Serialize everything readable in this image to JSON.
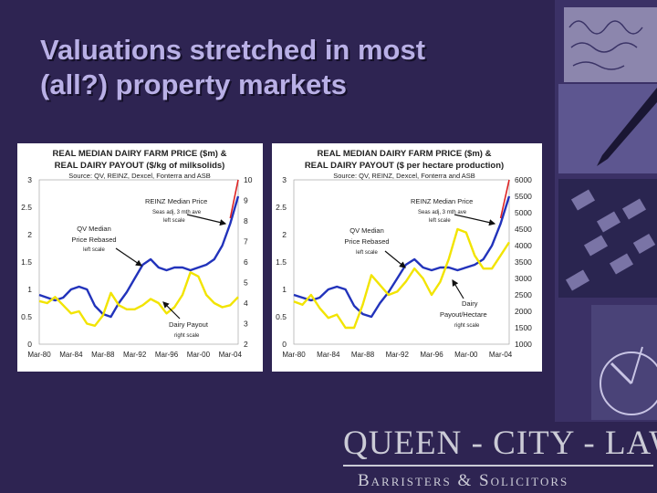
{
  "slide": {
    "title_line1": "Valuations stretched in most",
    "title_line2": "(all?) property markets",
    "background": "#2e2452",
    "title_color": "#b9b0e6"
  },
  "logo": {
    "main": "QUEEN - CITY - LAW",
    "sub": "Barristers & Solicitors"
  },
  "chart_data": [
    {
      "type": "line",
      "title_line1": "REAL MEDIAN DAIRY FARM PRICE ($m) &",
      "title_line2": "REAL DAIRY PAYOUT ($/kg of milksolids)",
      "source": "Source: QV, REINZ, Dexcel, Fonterra and ASB",
      "x": [
        1980,
        1981,
        1982,
        1983,
        1984,
        1985,
        1986,
        1987,
        1988,
        1989,
        1990,
        1991,
        1992,
        1993,
        1994,
        1995,
        1996,
        1997,
        1998,
        1999,
        2000,
        2001,
        2002,
        2003,
        2004,
        2005
      ],
      "x_ticks": [
        "Mar-80",
        "Mar-84",
        "Mar-88",
        "Mar-92",
        "Mar-96",
        "Mar-00",
        "Mar-04"
      ],
      "left_axis": {
        "min": 0,
        "max": 3,
        "ticks": [
          "0",
          "0.5",
          "1",
          "1.5",
          "2",
          "2.5",
          "3"
        ]
      },
      "right_axis": {
        "min": 2,
        "max": 10,
        "ticks": [
          "2",
          "3",
          "4",
          "5",
          "6",
          "7",
          "8",
          "9",
          "10"
        ]
      },
      "series": [
        {
          "name": "QV Median Price Rebased",
          "axis": "left",
          "color": "#2233bb",
          "values": [
            0.9,
            0.85,
            0.8,
            0.85,
            1.0,
            1.05,
            1.0,
            0.7,
            0.55,
            0.5,
            0.75,
            0.95,
            1.2,
            1.45,
            1.55,
            1.4,
            1.35,
            1.4,
            1.4,
            1.35,
            1.4,
            1.45,
            1.55,
            1.8,
            2.2,
            2.7
          ]
        },
        {
          "name": "REINZ Median Price",
          "axis": "left",
          "color": "#dd2222",
          "values": [
            null,
            null,
            null,
            null,
            null,
            null,
            null,
            null,
            null,
            null,
            null,
            null,
            null,
            null,
            null,
            null,
            null,
            null,
            null,
            null,
            null,
            null,
            null,
            null,
            2.3,
            3.0
          ]
        },
        {
          "name": "Dairy Payout",
          "axis": "right",
          "color": "#f2e400",
          "values": [
            4.1,
            4.0,
            4.3,
            3.9,
            3.5,
            3.6,
            3.0,
            2.9,
            3.4,
            4.5,
            3.9,
            3.7,
            3.7,
            3.9,
            4.2,
            4.0,
            3.5,
            3.8,
            4.4,
            5.5,
            5.3,
            4.4,
            4.0,
            3.8,
            3.9,
            4.3
          ]
        }
      ],
      "annotations": [
        {
          "text": "REINZ Median Price",
          "note1": "Seas adj, 3 mth ave",
          "note2": "left scale"
        },
        {
          "text": "QV Median",
          "text2": "Price Rebased",
          "note1": "left scale"
        },
        {
          "text": "Dairy Payout",
          "note1": "right scale"
        }
      ]
    },
    {
      "type": "line",
      "title_line1": "REAL MEDIAN DAIRY FARM PRICE ($m) &",
      "title_line2": "REAL DAIRY PAYOUT ($ per hectare production)",
      "source": "Source: QV, REINZ, Dexcel, Fonterra and ASB",
      "x": [
        1980,
        1981,
        1982,
        1983,
        1984,
        1985,
        1986,
        1987,
        1988,
        1989,
        1990,
        1991,
        1992,
        1993,
        1994,
        1995,
        1996,
        1997,
        1998,
        1999,
        2000,
        2001,
        2002,
        2003,
        2004,
        2005
      ],
      "x_ticks": [
        "Mar-80",
        "Mar-84",
        "Mar-88",
        "Mar-92",
        "Mar-96",
        "Mar-00",
        "Mar-04"
      ],
      "left_axis": {
        "min": 0,
        "max": 3,
        "ticks": [
          "0",
          "0.5",
          "1",
          "1.5",
          "2",
          "2.5",
          "3"
        ]
      },
      "right_axis": {
        "min": 1000,
        "max": 6000,
        "ticks": [
          "1000",
          "1500",
          "2000",
          "2500",
          "3000",
          "3500",
          "4000",
          "4500",
          "5000",
          "5500",
          "6000"
        ]
      },
      "series": [
        {
          "name": "QV Median Price Rebased",
          "axis": "left",
          "color": "#2233bb",
          "values": [
            0.9,
            0.85,
            0.8,
            0.85,
            1.0,
            1.05,
            1.0,
            0.7,
            0.55,
            0.5,
            0.75,
            0.95,
            1.2,
            1.45,
            1.55,
            1.4,
            1.35,
            1.4,
            1.4,
            1.35,
            1.4,
            1.45,
            1.55,
            1.8,
            2.2,
            2.7
          ]
        },
        {
          "name": "REINZ Median Price",
          "axis": "left",
          "color": "#dd2222",
          "values": [
            null,
            null,
            null,
            null,
            null,
            null,
            null,
            null,
            null,
            null,
            null,
            null,
            null,
            null,
            null,
            null,
            null,
            null,
            null,
            null,
            null,
            null,
            null,
            null,
            2.3,
            3.0
          ]
        },
        {
          "name": "Dairy Payout/Hectare",
          "axis": "right",
          "color": "#f2e400",
          "values": [
            2300,
            2200,
            2500,
            2100,
            1800,
            1900,
            1500,
            1500,
            2200,
            3100,
            2800,
            2500,
            2600,
            2900,
            3300,
            3000,
            2500,
            2900,
            3600,
            4500,
            4400,
            3700,
            3300,
            3300,
            3700,
            4100
          ]
        }
      ],
      "annotations": [
        {
          "text": "REINZ Median Price",
          "note1": "Seas adj, 3 mth ave",
          "note2": "left scale"
        },
        {
          "text": "QV Median",
          "text2": "Price Rebased",
          "note1": "left scale"
        },
        {
          "text": "Dairy",
          "text2": "Payout/Hectare",
          "note1": "right scale"
        }
      ]
    }
  ]
}
